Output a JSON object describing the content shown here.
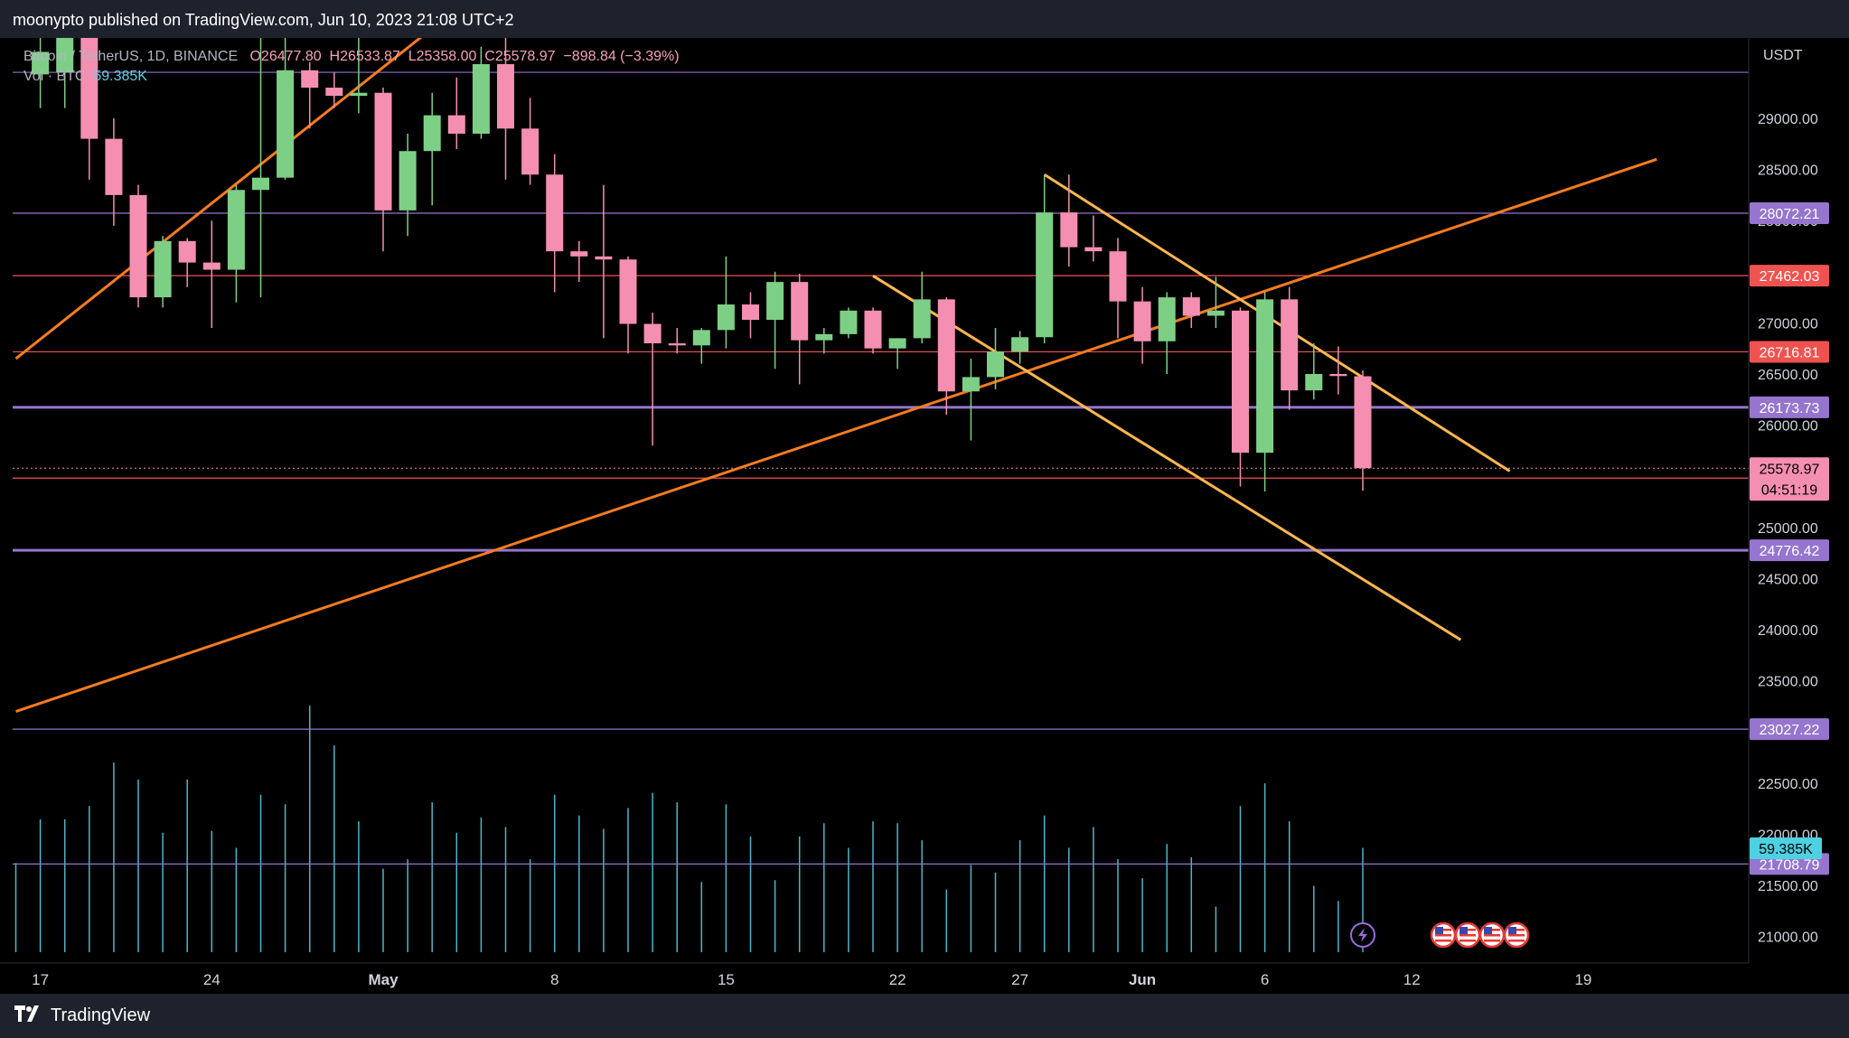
{
  "header": {
    "publisher": "moonypto published on TradingView.com, Jun 10, 2023 21:08 UTC+2"
  },
  "legend": {
    "symbol": "Bitcoin / TetherUS, 1D, BINANCE",
    "open": "O26477.80",
    "high": "H26533.87",
    "low": "L25358.00",
    "close": "C25578.97",
    "change": "−898.84 (−3.39%)",
    "vol_label": "Vol · BTC",
    "vol_value": "59.385K"
  },
  "footer": {
    "brand": "TradingView",
    "logo": "tradingview-logo"
  },
  "colors": {
    "background": "#000000",
    "up": "#7ecf86",
    "down": "#f48fb1",
    "trendline_orange": "#f57c1f",
    "trendline_yellow": "#ffb74d",
    "level_purple": "#9575cd",
    "level_red": "#ef5350",
    "volume": "#4db6c8"
  },
  "chart_data": {
    "type": "candlestick",
    "currency": "USDT",
    "ylim": [
      20800,
      29700
    ],
    "y_ticks": [
      21000,
      21500,
      22000,
      22500,
      23000,
      23500,
      24000,
      24500,
      25000,
      25500,
      26000,
      26500,
      27000,
      27500,
      28000,
      28500,
      29000
    ],
    "x_ticks": [
      {
        "label": "17",
        "date": "2023-04-17"
      },
      {
        "label": "24",
        "date": "2023-04-24"
      },
      {
        "label": "May",
        "date": "2023-05-01"
      },
      {
        "label": "8",
        "date": "2023-05-08"
      },
      {
        "label": "15",
        "date": "2023-05-15"
      },
      {
        "label": "22",
        "date": "2023-05-22"
      },
      {
        "label": "27",
        "date": "2023-05-27"
      },
      {
        "label": "Jun",
        "date": "2023-06-01"
      },
      {
        "label": "6",
        "date": "2023-06-06"
      },
      {
        "label": "12",
        "date": "2023-06-12"
      },
      {
        "label": "19",
        "date": "2023-06-19"
      }
    ],
    "x_range": [
      "2023-04-16",
      "2023-06-22"
    ],
    "candles": [
      {
        "date": "2023-04-17",
        "o": 29430,
        "h": 30000,
        "l": 29100,
        "c": 29650
      },
      {
        "date": "2023-04-18",
        "o": 29450,
        "h": 30400,
        "l": 29100,
        "c": 30400
      },
      {
        "date": "2023-04-19",
        "o": 30400,
        "h": 30400,
        "l": 28400,
        "c": 28800
      },
      {
        "date": "2023-04-20",
        "o": 28800,
        "h": 29000,
        "l": 27950,
        "c": 28250
      },
      {
        "date": "2023-04-21",
        "o": 28250,
        "h": 28350,
        "l": 27150,
        "c": 27250
      },
      {
        "date": "2023-04-22",
        "o": 27250,
        "h": 27850,
        "l": 27150,
        "c": 27800
      },
      {
        "date": "2023-04-23",
        "o": 27800,
        "h": 27830,
        "l": 27350,
        "c": 27590
      },
      {
        "date": "2023-04-24",
        "o": 27590,
        "h": 28000,
        "l": 26950,
        "c": 27520
      },
      {
        "date": "2023-04-25",
        "o": 27520,
        "h": 28350,
        "l": 27200,
        "c": 28300
      },
      {
        "date": "2023-04-26",
        "o": 28300,
        "h": 30000,
        "l": 27250,
        "c": 28420
      },
      {
        "date": "2023-04-27",
        "o": 28420,
        "h": 29850,
        "l": 28400,
        "c": 29470
      },
      {
        "date": "2023-04-28",
        "o": 29470,
        "h": 29550,
        "l": 28900,
        "c": 29300
      },
      {
        "date": "2023-04-29",
        "o": 29300,
        "h": 29450,
        "l": 29100,
        "c": 29220
      },
      {
        "date": "2023-04-30",
        "o": 29220,
        "h": 29950,
        "l": 29050,
        "c": 29250
      },
      {
        "date": "2023-05-01",
        "o": 29250,
        "h": 29300,
        "l": 27700,
        "c": 28100
      },
      {
        "date": "2023-05-02",
        "o": 28100,
        "h": 28850,
        "l": 27850,
        "c": 28680
      },
      {
        "date": "2023-05-03",
        "o": 28680,
        "h": 29250,
        "l": 28150,
        "c": 29030
      },
      {
        "date": "2023-05-04",
        "o": 29030,
        "h": 29400,
        "l": 28700,
        "c": 28850
      },
      {
        "date": "2023-05-05",
        "o": 28850,
        "h": 29700,
        "l": 28800,
        "c": 29530
      },
      {
        "date": "2023-05-06",
        "o": 29530,
        "h": 29840,
        "l": 28400,
        "c": 28900
      },
      {
        "date": "2023-05-07",
        "o": 28900,
        "h": 29200,
        "l": 28350,
        "c": 28450
      },
      {
        "date": "2023-05-08",
        "o": 28450,
        "h": 28650,
        "l": 27300,
        "c": 27700
      },
      {
        "date": "2023-05-09",
        "o": 27700,
        "h": 27800,
        "l": 27400,
        "c": 27650
      },
      {
        "date": "2023-05-10",
        "o": 27650,
        "h": 28350,
        "l": 26850,
        "c": 27620
      },
      {
        "date": "2023-05-11",
        "o": 27620,
        "h": 27650,
        "l": 26700,
        "c": 26990
      },
      {
        "date": "2023-05-12",
        "o": 26990,
        "h": 27100,
        "l": 25800,
        "c": 26800
      },
      {
        "date": "2023-05-13",
        "o": 26800,
        "h": 26950,
        "l": 26700,
        "c": 26780
      },
      {
        "date": "2023-05-14",
        "o": 26780,
        "h": 26950,
        "l": 26600,
        "c": 26930
      },
      {
        "date": "2023-05-15",
        "o": 26930,
        "h": 27650,
        "l": 26750,
        "c": 27180
      },
      {
        "date": "2023-05-16",
        "o": 27180,
        "h": 27300,
        "l": 26850,
        "c": 27030
      },
      {
        "date": "2023-05-17",
        "o": 27030,
        "h": 27500,
        "l": 26550,
        "c": 27400
      },
      {
        "date": "2023-05-18",
        "o": 27400,
        "h": 27480,
        "l": 26400,
        "c": 26830
      },
      {
        "date": "2023-05-19",
        "o": 26830,
        "h": 26950,
        "l": 26700,
        "c": 26890
      },
      {
        "date": "2023-05-20",
        "o": 26890,
        "h": 27150,
        "l": 26850,
        "c": 27120
      },
      {
        "date": "2023-05-21",
        "o": 27120,
        "h": 27150,
        "l": 26700,
        "c": 26750
      },
      {
        "date": "2023-05-22",
        "o": 26750,
        "h": 26850,
        "l": 26550,
        "c": 26850
      },
      {
        "date": "2023-05-23",
        "o": 26850,
        "h": 27500,
        "l": 26800,
        "c": 27230
      },
      {
        "date": "2023-05-24",
        "o": 27230,
        "h": 27250,
        "l": 26100,
        "c": 26330
      },
      {
        "date": "2023-05-25",
        "o": 26330,
        "h": 26650,
        "l": 25850,
        "c": 26470
      },
      {
        "date": "2023-05-26",
        "o": 26470,
        "h": 26950,
        "l": 26350,
        "c": 26720
      },
      {
        "date": "2023-05-27",
        "o": 26720,
        "h": 26920,
        "l": 26600,
        "c": 26860
      },
      {
        "date": "2023-05-28",
        "o": 26860,
        "h": 28450,
        "l": 26800,
        "c": 28080
      },
      {
        "date": "2023-05-29",
        "o": 28080,
        "h": 28450,
        "l": 27550,
        "c": 27740
      },
      {
        "date": "2023-05-30",
        "o": 27740,
        "h": 28050,
        "l": 27600,
        "c": 27700
      },
      {
        "date": "2023-05-31",
        "o": 27700,
        "h": 27830,
        "l": 26850,
        "c": 27210
      },
      {
        "date": "2023-06-01",
        "o": 27210,
        "h": 27350,
        "l": 26600,
        "c": 26820
      },
      {
        "date": "2023-06-02",
        "o": 26820,
        "h": 27300,
        "l": 26500,
        "c": 27250
      },
      {
        "date": "2023-06-03",
        "o": 27250,
        "h": 27300,
        "l": 26950,
        "c": 27070
      },
      {
        "date": "2023-06-04",
        "o": 27070,
        "h": 27450,
        "l": 26950,
        "c": 27120
      },
      {
        "date": "2023-06-05",
        "o": 27120,
        "h": 27150,
        "l": 25400,
        "c": 25730
      },
      {
        "date": "2023-06-06",
        "o": 25730,
        "h": 27300,
        "l": 25350,
        "c": 27230
      },
      {
        "date": "2023-06-07",
        "o": 27230,
        "h": 27350,
        "l": 26150,
        "c": 26340
      },
      {
        "date": "2023-06-08",
        "o": 26340,
        "h": 26800,
        "l": 26250,
        "c": 26500
      },
      {
        "date": "2023-06-09",
        "o": 26500,
        "h": 26770,
        "l": 26300,
        "c": 26480
      },
      {
        "date": "2023-06-10",
        "o": 26477.8,
        "h": 26533.87,
        "l": 25358,
        "c": 25578.97
      }
    ],
    "volume": [
      {
        "date": "2023-04-16",
        "v": 0.47
      },
      {
        "date": "2023-04-17",
        "v": 0.7
      },
      {
        "date": "2023-04-18",
        "v": 0.7
      },
      {
        "date": "2023-04-19",
        "v": 0.77
      },
      {
        "date": "2023-04-20",
        "v": 1.0
      },
      {
        "date": "2023-04-21",
        "v": 0.91
      },
      {
        "date": "2023-04-22",
        "v": 0.63
      },
      {
        "date": "2023-04-23",
        "v": 0.91
      },
      {
        "date": "2023-04-24",
        "v": 0.64
      },
      {
        "date": "2023-04-25",
        "v": 0.55
      },
      {
        "date": "2023-04-26",
        "v": 0.83
      },
      {
        "date": "2023-04-27",
        "v": 0.78
      },
      {
        "date": "2023-04-28",
        "v": 1.3
      },
      {
        "date": "2023-04-29",
        "v": 1.09
      },
      {
        "date": "2023-04-30",
        "v": 0.69
      },
      {
        "date": "2023-05-01",
        "v": 0.44
      },
      {
        "date": "2023-05-02",
        "v": 0.49
      },
      {
        "date": "2023-05-03",
        "v": 0.79
      },
      {
        "date": "2023-05-04",
        "v": 0.63
      },
      {
        "date": "2023-05-05",
        "v": 0.71
      },
      {
        "date": "2023-05-06",
        "v": 0.66
      },
      {
        "date": "2023-05-07",
        "v": 0.49
      },
      {
        "date": "2023-05-08",
        "v": 0.83
      },
      {
        "date": "2023-05-09",
        "v": 0.72
      },
      {
        "date": "2023-05-10",
        "v": 0.65
      },
      {
        "date": "2023-05-11",
        "v": 0.76
      },
      {
        "date": "2023-05-12",
        "v": 0.84
      },
      {
        "date": "2023-05-13",
        "v": 0.79
      },
      {
        "date": "2023-05-14",
        "v": 0.37
      },
      {
        "date": "2023-05-15",
        "v": 0.78
      },
      {
        "date": "2023-05-16",
        "v": 0.61
      },
      {
        "date": "2023-05-17",
        "v": 0.38
      },
      {
        "date": "2023-05-18",
        "v": 0.61
      },
      {
        "date": "2023-05-19",
        "v": 0.68
      },
      {
        "date": "2023-05-20",
        "v": 0.55
      },
      {
        "date": "2023-05-21",
        "v": 0.69
      },
      {
        "date": "2023-05-22",
        "v": 0.68
      },
      {
        "date": "2023-05-23",
        "v": 0.59
      },
      {
        "date": "2023-05-24",
        "v": 0.33
      },
      {
        "date": "2023-05-25",
        "v": 0.46
      },
      {
        "date": "2023-05-26",
        "v": 0.42
      },
      {
        "date": "2023-05-27",
        "v": 0.59
      },
      {
        "date": "2023-05-28",
        "v": 0.72
      },
      {
        "date": "2023-05-29",
        "v": 0.55
      },
      {
        "date": "2023-05-30",
        "v": 0.66
      },
      {
        "date": "2023-05-31",
        "v": 0.49
      },
      {
        "date": "2023-06-01",
        "v": 0.39
      },
      {
        "date": "2023-06-02",
        "v": 0.57
      },
      {
        "date": "2023-06-03",
        "v": 0.5
      },
      {
        "date": "2023-06-04",
        "v": 0.24
      },
      {
        "date": "2023-06-05",
        "v": 0.77
      },
      {
        "date": "2023-06-06",
        "v": 0.89
      },
      {
        "date": "2023-06-07",
        "v": 0.69
      },
      {
        "date": "2023-06-08",
        "v": 0.35
      },
      {
        "date": "2023-06-09",
        "v": 0.27
      },
      {
        "date": "2023-06-10",
        "v": 0.55
      }
    ],
    "horizontal_levels": [
      {
        "value": 29450,
        "color": "purple",
        "label": ""
      },
      {
        "value": 28072.21,
        "color": "purple",
        "label": "28072.21"
      },
      {
        "value": 27462.03,
        "color": "red",
        "label": "27462.03"
      },
      {
        "value": 26716.81,
        "color": "red",
        "label": "26716.81"
      },
      {
        "value": 26173.73,
        "color": "purple",
        "label": "26173.73",
        "thick": true
      },
      {
        "value": 25482.18,
        "color": "red",
        "label": "25482.18"
      },
      {
        "value": 24776.42,
        "color": "purple",
        "label": "24776.42",
        "thick": true
      },
      {
        "value": 23027.22,
        "color": "purple",
        "label": "23027.22"
      },
      {
        "value": 21708.79,
        "color": "purple",
        "label": "21708.79"
      }
    ],
    "price_tags": {
      "last_price": "25578.97",
      "countdown": "04:51:19",
      "volume_tag": "59.385K"
    },
    "trendlines": [
      {
        "color": "orange",
        "from": {
          "date": "2023-04-16",
          "price": 26650
        },
        "to": {
          "date": "2023-05-06",
          "price": 30450
        }
      },
      {
        "color": "orange",
        "from": {
          "date": "2023-04-16",
          "price": 23200
        },
        "to": {
          "date": "2023-06-22",
          "price": 28600
        }
      },
      {
        "color": "yellow",
        "from": {
          "date": "2023-05-28",
          "price": 28450
        },
        "to": {
          "date": "2023-06-16",
          "price": 25550
        }
      },
      {
        "color": "yellow",
        "from": {
          "date": "2023-05-21",
          "price": 27460
        },
        "to": {
          "date": "2023-06-14",
          "price": 23900
        }
      }
    ],
    "event_icons": [
      "lightning-icon",
      "us-flag-icon",
      "us-flag-icon",
      "us-flag-icon",
      "us-flag-icon"
    ]
  }
}
